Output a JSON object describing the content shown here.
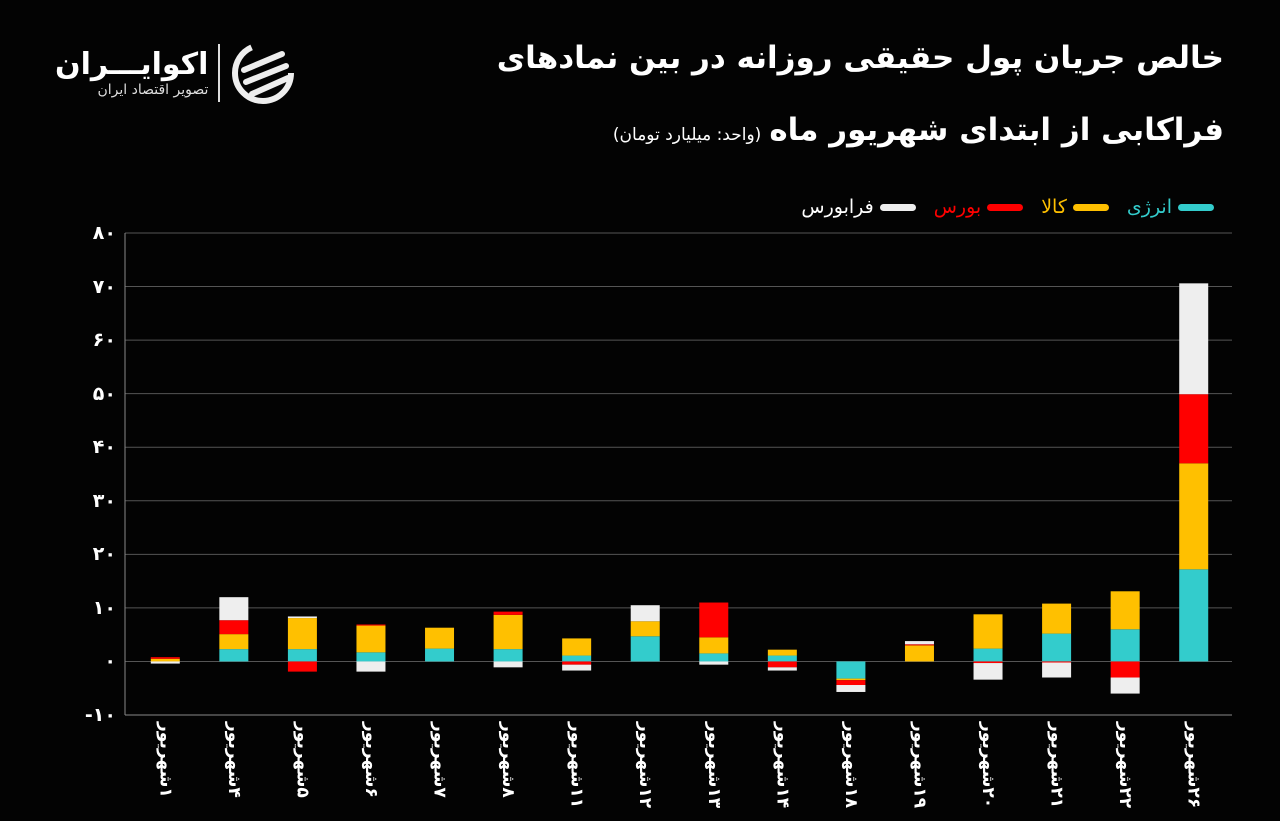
{
  "title_line1": "خالص جریان پول حقیقی روزانه در بین نمادهای",
  "title_line2": "فراکابی از ابتدای شهریور ماه",
  "unit": "(واحد: میلیارد تومان)",
  "logo": {
    "name": "اکوایـــران",
    "tagline": "تصویر اقتصاد ایران"
  },
  "chart_data": {
    "type": "bar",
    "stacked": true,
    "title": "خالص جریان پول حقیقی روزانه در بین نمادهای فراکابی از ابتدای شهریور ماه",
    "ylabel": "(واحد: میلیارد تومان)",
    "ylim": [
      -10,
      80
    ],
    "yticks": [
      80,
      70,
      60,
      50,
      40,
      30,
      20,
      10,
      0,
      -10
    ],
    "ytick_labels": [
      "۸۰",
      "۷۰",
      "۶۰",
      "۵۰",
      "۴۰",
      "۳۰",
      "۲۰",
      "۱۰",
      "۰",
      "-۱۰"
    ],
    "grid": true,
    "legend_position": "top-right",
    "categories": [
      "۱شهریور",
      "۴شهریور",
      "۵شهریور",
      "۶شهریور",
      "۷شهریور",
      "۸شهریور",
      "۱۱شهریور",
      "۱۲شهریور",
      "۱۳شهریور",
      "۱۴شهریور",
      "۱۸شهریور",
      "۱۹شهریور",
      "۲۰شهریور",
      "۲۱شهریور",
      "۲۲شهریور",
      "۲۶شهریور"
    ],
    "series": [
      {
        "name": "انرژی",
        "color": "#33cccc",
        "values": [
          0,
          2.3,
          2.3,
          1.7,
          2.4,
          2.3,
          1.1,
          4.7,
          1.5,
          1.1,
          -3.2,
          0,
          2.4,
          5.2,
          6.0,
          17.2
        ]
      },
      {
        "name": "کالا",
        "color": "#ffc000",
        "values": [
          0.5,
          2.8,
          5.8,
          5.0,
          3.9,
          6.4,
          3.2,
          2.8,
          3.0,
          1.1,
          -0.3,
          3.0,
          6.4,
          5.6,
          7.1,
          19.8
        ]
      },
      {
        "name": "بورس",
        "color": "#ff0000",
        "values": [
          0.3,
          2.6,
          -1.9,
          0.2,
          0,
          0.6,
          -0.6,
          0,
          6.5,
          -1.1,
          -0.9,
          0.2,
          -0.3,
          -0.2,
          -3.0,
          12.9
        ]
      },
      {
        "name": "فرابورس",
        "color": "#eeeeee",
        "values": [
          -0.4,
          4.3,
          0.3,
          -1.9,
          0,
          -1.1,
          -1.1,
          3.0,
          -0.6,
          -0.6,
          -1.3,
          0.6,
          -3.1,
          -2.8,
          -3.0,
          20.7
        ]
      }
    ]
  }
}
